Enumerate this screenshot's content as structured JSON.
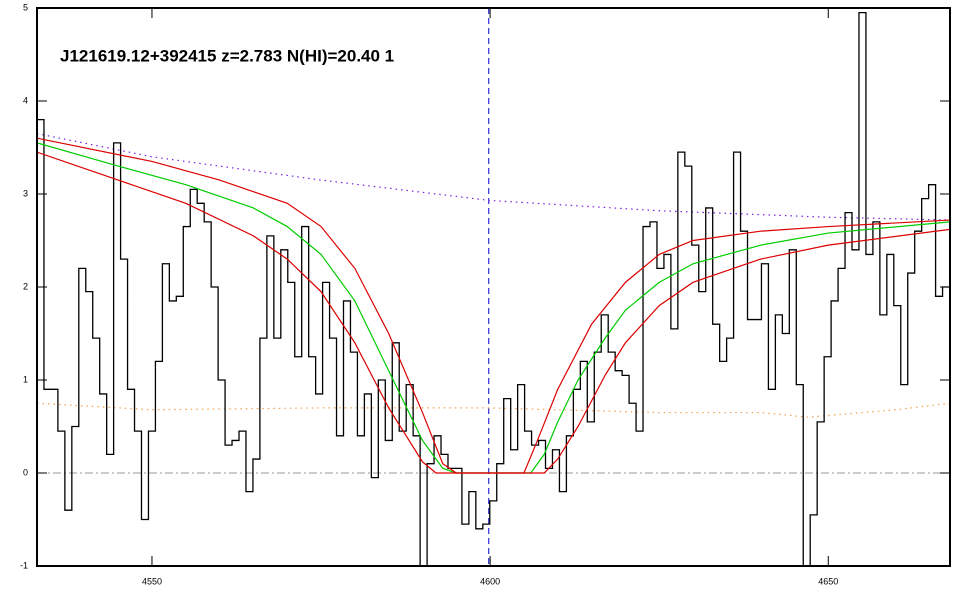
{
  "chart_data": {
    "type": "line",
    "title": "J121619.12+392415 z=2.783 N(HI)=20.40 1",
    "xlim": [
      4533,
      4668
    ],
    "xticks": [
      4550,
      4600,
      4650
    ],
    "ylim": [
      -1,
      5
    ],
    "yticks": [
      -1,
      0,
      1,
      2,
      3,
      4,
      5
    ],
    "hline": 0,
    "hline_color": "#999999",
    "vline": 4599.8,
    "vline_color": "#0000cc",
    "series": [
      {
        "color": "#7a1fe0",
        "dash": "dotted",
        "x": [
          4533,
          4550,
          4575,
          4600,
          4625,
          4650,
          4668
        ],
        "values": [
          3.65,
          3.4,
          3.15,
          2.93,
          2.82,
          2.75,
          2.72
        ]
      },
      {
        "color": "#f0a050",
        "dash": "dotted",
        "x": [
          4533,
          4550,
          4575,
          4600,
          4625,
          4640,
          4647,
          4660,
          4668
        ],
        "values": [
          0.75,
          0.68,
          0.7,
          0.7,
          0.65,
          0.65,
          0.6,
          0.68,
          0.75
        ]
      },
      {
        "color": "#000000",
        "dash": "solid",
        "bins": [
          4533,
          4534.03,
          4535.06,
          4536.09,
          4537.12,
          4538.15,
          4539.18,
          4540.21,
          4541.24,
          4542.27,
          4543.3,
          4544.33,
          4545.36,
          4546.39,
          4547.42,
          4548.45,
          4549.48,
          4550.51,
          4551.54,
          4552.57,
          4553.6,
          4554.63,
          4555.66,
          4556.69,
          4557.72,
          4558.75,
          4559.78,
          4560.81,
          4561.84,
          4562.87,
          4563.9,
          4564.93,
          4565.96,
          4566.99,
          4568.02,
          4569.05,
          4570.08,
          4571.11,
          4572.14,
          4573.17,
          4574.2,
          4575.23,
          4576.26,
          4577.29,
          4578.32,
          4579.35,
          4580.38,
          4581.41,
          4582.44,
          4583.47,
          4584.5,
          4585.53,
          4586.56,
          4587.59,
          4588.62,
          4589.65,
          4590.68,
          4591.71,
          4592.74,
          4593.77,
          4594.8,
          4595.83,
          4596.86,
          4597.89,
          4598.92,
          4599.95,
          4600.98,
          4602.01,
          4603.04,
          4604.07,
          4605.1,
          4606.13,
          4607.16,
          4608.19,
          4609.22,
          4610.25,
          4611.28,
          4612.31,
          4613.34,
          4614.37,
          4615.4,
          4616.43,
          4617.46,
          4618.49,
          4619.52,
          4620.55,
          4621.58,
          4622.61,
          4623.64,
          4624.67,
          4625.7,
          4626.73,
          4627.76,
          4628.79,
          4629.82,
          4630.85,
          4631.88,
          4632.91,
          4633.94,
          4634.97,
          4636,
          4637.03,
          4638.06,
          4639.09,
          4640.12,
          4641.15,
          4642.18,
          4643.21,
          4644.24,
          4645.27,
          4646.3,
          4647.33,
          4648.36,
          4649.39,
          4650.42,
          4651.45,
          4652.48,
          4653.51,
          4654.54,
          4655.57,
          4656.6,
          4657.63,
          4658.66,
          4659.69,
          4660.72,
          4661.75,
          4662.78,
          4663.81,
          4664.84,
          4665.87,
          4666.9,
          4667.93
        ],
        "values": [
          3.8,
          0.9,
          0.9,
          0.45,
          -0.4,
          0.5,
          2.2,
          1.95,
          1.45,
          0.85,
          0.2,
          3.55,
          2.3,
          0.9,
          0.45,
          -0.5,
          0.45,
          1.2,
          2.25,
          1.85,
          1.9,
          2.65,
          3.05,
          2.9,
          2.7,
          2.0,
          1.0,
          0.3,
          0.35,
          0.45,
          -0.2,
          0.15,
          1.45,
          2.55,
          1.45,
          2.4,
          2.05,
          1.25,
          2.65,
          1.25,
          0.85,
          2.05,
          1.45,
          0.4,
          1.85,
          1.3,
          0.4,
          0.85,
          -0.05,
          1.0,
          0.35,
          1.4,
          0.45,
          0.95,
          0.4,
          -1.0,
          0.1,
          0.4,
          0.2,
          0.05,
          0.05,
          -0.55,
          -0.2,
          -0.6,
          -0.55,
          -0.3,
          0.1,
          0.8,
          0.25,
          0.95,
          0.45,
          0.3,
          0.35,
          0.05,
          0.25,
          -0.2,
          0.4,
          0.9,
          1.2,
          0.55,
          1.3,
          1.7,
          1.3,
          1.1,
          1.05,
          0.75,
          0.45,
          2.65,
          2.7,
          2.2,
          2.35,
          1.55,
          3.45,
          3.3,
          2.45,
          1.95,
          2.85,
          1.6,
          1.2,
          1.45,
          3.45,
          2.6,
          1.65,
          1.65,
          2.25,
          0.9,
          1.7,
          1.5,
          2.4,
          0.95,
          -1.0,
          -0.45,
          0.55,
          1.25,
          1.85,
          2.2,
          2.8,
          2.4,
          4.95,
          2.35,
          2.7,
          1.7,
          2.35,
          1.8,
          0.95,
          2.15,
          2.6,
          2.95,
          3.1,
          1.9,
          2.0
        ]
      },
      {
        "color": "#00cc00",
        "dash": "solid",
        "x": [
          4533,
          4545,
          4555,
          4565,
          4570,
          4575,
          4580,
          4585,
          4590,
          4593,
          4595,
          4606,
          4608,
          4610,
          4613,
          4617,
          4620,
          4625,
          4630,
          4640,
          4650,
          4668
        ],
        "values": [
          3.55,
          3.3,
          3.1,
          2.85,
          2.65,
          2.35,
          1.85,
          1.1,
          0.35,
          0.05,
          0,
          0,
          0.2,
          0.55,
          1.0,
          1.45,
          1.75,
          2.05,
          2.25,
          2.45,
          2.58,
          2.7
        ]
      },
      {
        "color": "#dd0000",
        "dash": "solid",
        "x": [
          4533,
          4550,
          4560,
          4570,
          4575,
          4580,
          4585,
          4590,
          4593,
          4595,
          4605,
          4607,
          4610,
          4615,
          4620,
          4625,
          4630,
          4640,
          4650,
          4668
        ],
        "values": [
          3.6,
          3.35,
          3.15,
          2.9,
          2.65,
          2.2,
          1.5,
          0.65,
          0.1,
          0,
          0,
          0.35,
          0.9,
          1.6,
          2.05,
          2.35,
          2.5,
          2.6,
          2.65,
          2.72
        ]
      },
      {
        "color": "#dd0000",
        "dash": "solid",
        "x": [
          4533,
          4545,
          4555,
          4565,
          4570,
          4575,
          4580,
          4585,
          4590,
          4592,
          4608,
          4610,
          4613,
          4617,
          4620,
          4625,
          4630,
          4640,
          4650,
          4668
        ],
        "values": [
          3.45,
          3.15,
          2.9,
          2.55,
          2.3,
          1.95,
          1.4,
          0.7,
          0.12,
          0,
          0,
          0.15,
          0.5,
          1.05,
          1.4,
          1.8,
          2.05,
          2.3,
          2.45,
          2.62
        ]
      }
    ]
  }
}
